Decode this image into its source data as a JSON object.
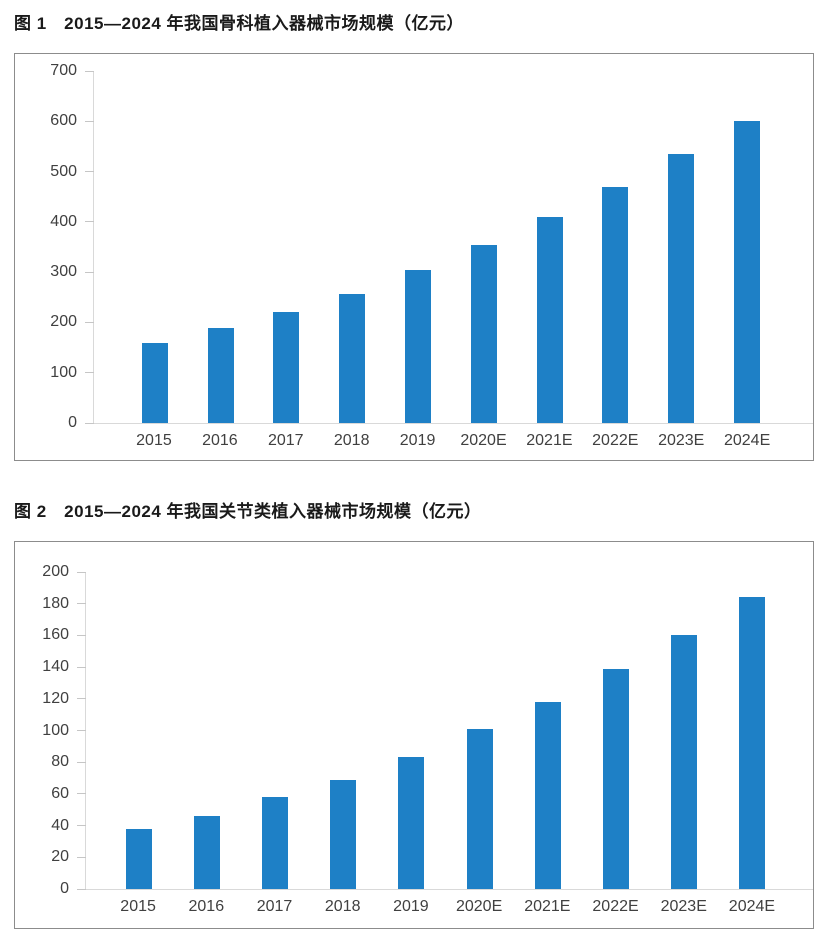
{
  "colors": {
    "bar": "#1e80c6",
    "axis_line": "#d9d9d9",
    "tick_mark": "#c6c6c6",
    "panel_border": "#8c8c8c",
    "axis_text": "#404040",
    "title_text": "#1a1a1a",
    "background": "#ffffff"
  },
  "chart_data": [
    {
      "type": "bar",
      "title": "图 1　2015—2024 年我国骨科植入器械市场规模（亿元）",
      "categories": [
        "2015",
        "2016",
        "2017",
        "2018",
        "2019",
        "2020E",
        "2021E",
        "2022E",
        "2023E",
        "2024E"
      ],
      "values": [
        160,
        188,
        221,
        257,
        304,
        355,
        410,
        470,
        535,
        600
      ],
      "unit": "亿元",
      "xlabel": "",
      "ylabel": "",
      "ylim": [
        0,
        700
      ],
      "yticks": [
        0,
        100,
        200,
        300,
        400,
        500,
        600,
        700
      ],
      "grid": false,
      "legend": "none",
      "bar_color": "#1e80c6"
    },
    {
      "type": "bar",
      "title": "图 2　2015—2024 年我国关节类植入器械市场规模（亿元）",
      "categories": [
        "2015",
        "2016",
        "2017",
        "2018",
        "2019",
        "2020E",
        "2021E",
        "2022E",
        "2023E",
        "2024E"
      ],
      "values": [
        38,
        46,
        58,
        69,
        83,
        101,
        118,
        139,
        160,
        184
      ],
      "unit": "亿元",
      "xlabel": "",
      "ylabel": "",
      "ylim": [
        0,
        200
      ],
      "yticks": [
        0,
        20,
        40,
        60,
        80,
        100,
        120,
        140,
        160,
        180,
        200
      ],
      "grid": false,
      "legend": "none",
      "bar_color": "#1e80c6"
    }
  ]
}
